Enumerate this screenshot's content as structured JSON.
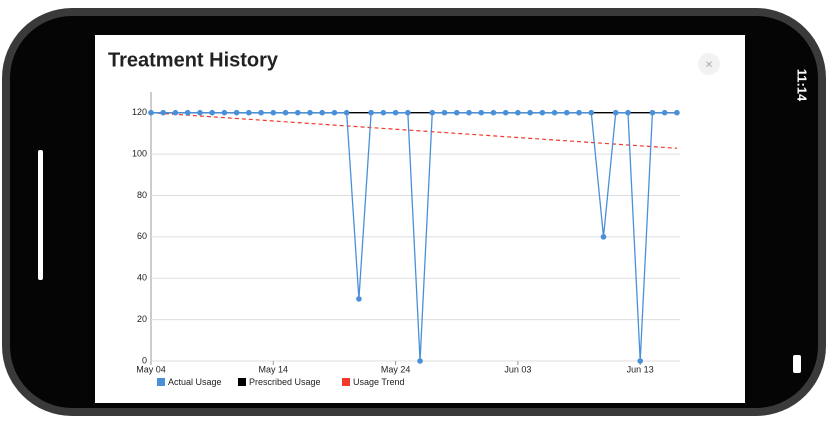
{
  "status_time": "11:14",
  "close_icon": "×",
  "chart_data": {
    "type": "line",
    "title": "Treatment History",
    "x": [
      "May 04",
      "May 05",
      "May 06",
      "May 07",
      "May 08",
      "May 09",
      "May 10",
      "May 11",
      "May 12",
      "May 13",
      "May 14",
      "May 15",
      "May 16",
      "May 17",
      "May 18",
      "May 19",
      "May 20",
      "May 21",
      "May 22",
      "May 23",
      "May 24",
      "May 25",
      "May 26",
      "May 27",
      "May 28",
      "May 29",
      "May 30",
      "May 31",
      "Jun 01",
      "Jun 02",
      "Jun 03",
      "Jun 04",
      "Jun 05",
      "Jun 06",
      "Jun 07",
      "Jun 08",
      "Jun 09",
      "Jun 10",
      "Jun 11",
      "Jun 12",
      "Jun 13",
      "Jun 14",
      "Jun 15",
      "Jun 16"
    ],
    "xticks": [
      "May 04",
      "May 14",
      "May 24",
      "Jun 03",
      "Jun 13"
    ],
    "ylim": [
      0,
      130
    ],
    "yticks": [
      0,
      20,
      40,
      60,
      80,
      100,
      120
    ],
    "grid": true,
    "series": [
      {
        "name": "Actual Usage",
        "color": "#4a90d9",
        "values": [
          120,
          120,
          120,
          120,
          120,
          120,
          120,
          120,
          120,
          120,
          120,
          120,
          120,
          120,
          120,
          120,
          120,
          30,
          120,
          120,
          120,
          120,
          0,
          120,
          120,
          120,
          120,
          120,
          120,
          120,
          120,
          120,
          120,
          120,
          120,
          120,
          120,
          60,
          120,
          120,
          0,
          120,
          120,
          120
        ]
      },
      {
        "name": "Prescribed Usage",
        "color": "#000000",
        "values": [
          120,
          120,
          120,
          120,
          120,
          120,
          120,
          120,
          120,
          120,
          120,
          120,
          120,
          120,
          120,
          120,
          120,
          120,
          120,
          120,
          120,
          120,
          120,
          120,
          120,
          120,
          120,
          120,
          120,
          120,
          120,
          120,
          120,
          120,
          120,
          120,
          120,
          120,
          120,
          120,
          120,
          120,
          120,
          120
        ]
      },
      {
        "name": "Usage Trend",
        "color": "#f03a2e",
        "dashed": true,
        "values": [
          120,
          119.6,
          119.2,
          118.8,
          118.4,
          118,
          117.6,
          117.2,
          116.8,
          116.4,
          116,
          115.6,
          115.2,
          114.8,
          114.4,
          114,
          113.6,
          113.2,
          112.8,
          112.4,
          112,
          111.6,
          111.2,
          110.8,
          110.4,
          110,
          109.6,
          109.2,
          108.8,
          108.4,
          108,
          107.6,
          107.2,
          106.8,
          106.4,
          106,
          105.6,
          105.2,
          104.8,
          104.4,
          104,
          103.6,
          103.2,
          102.8
        ]
      }
    ]
  }
}
